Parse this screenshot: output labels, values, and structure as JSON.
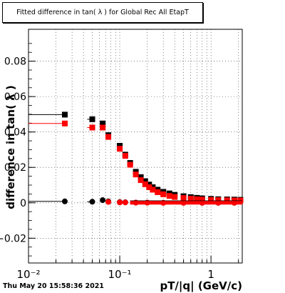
{
  "title": "Fitted difference in tan( λ ) for Global Rec All EtapT",
  "datestamp": "Thu May 20 15:58:36 2021",
  "chart_data": {
    "type": "scatter",
    "title": "Fitted difference in tan( λ ) for Global Rec All EtapT",
    "xlabel": "pT/|q| (GeV/c)",
    "ylabel": "difference in tan( λ )",
    "xscale": "log",
    "xlim": [
      0.01,
      2.2
    ],
    "ylim": [
      -0.034,
      0.098
    ],
    "yticks": [
      -0.02,
      0,
      0.02,
      0.04,
      0.06,
      0.08
    ],
    "ytick_labels": [
      "−0.02",
      "0",
      "0.02",
      "0.04",
      "0.06",
      "0.08"
    ],
    "xticks_major": [
      0.01,
      0.1,
      1
    ],
    "xtick_major_labels": [
      "10⁻²",
      "10⁻¹",
      "1"
    ],
    "grid": true,
    "series": [
      {
        "color": "#000000",
        "marker": "square",
        "x": [
          0.025,
          0.05,
          0.065,
          0.075,
          0.1,
          0.115,
          0.13,
          0.15,
          0.17,
          0.19,
          0.21,
          0.23,
          0.26,
          0.3,
          0.35,
          0.4,
          0.5,
          0.6,
          0.7,
          0.8,
          1.0,
          1.2,
          1.5,
          1.8,
          2.1
        ],
        "y": [
          0.0498,
          0.0472,
          0.0448,
          0.0382,
          0.0322,
          0.0272,
          0.0225,
          0.0175,
          0.0145,
          0.0122,
          0.0103,
          0.0088,
          0.0074,
          0.0062,
          0.0053,
          0.0045,
          0.0037,
          0.0032,
          0.0028,
          0.0025,
          0.0022,
          0.002,
          0.0019,
          0.0018,
          0.0017
        ],
        "xerr_low": [
          0.015,
          0.006,
          0.003
        ]
      },
      {
        "color": "#ff0000",
        "marker": "square",
        "x": [
          0.025,
          0.05,
          0.065,
          0.075,
          0.1,
          0.115,
          0.13,
          0.15,
          0.17,
          0.19,
          0.21,
          0.23,
          0.26,
          0.3,
          0.35,
          0.4,
          0.5,
          0.6,
          0.7,
          0.8,
          1.0,
          1.2,
          1.5,
          1.8,
          2.1
        ],
        "y": [
          0.0448,
          0.0425,
          0.0425,
          0.0372,
          0.0305,
          0.0265,
          0.0215,
          0.016,
          0.0128,
          0.0105,
          0.0088,
          0.0074,
          0.006,
          0.0048,
          0.0039,
          0.0033,
          0.0027,
          0.0023,
          0.002,
          0.0018,
          0.0016,
          0.0015,
          0.0014,
          0.0013,
          0.0013
        ],
        "xerr_low": [
          0.015,
          0.006,
          0.003
        ]
      },
      {
        "color": "#000000",
        "marker": "circle",
        "x": [
          0.025,
          0.05,
          0.065,
          0.075,
          0.1,
          0.115,
          0.15,
          0.2,
          0.3,
          0.5,
          0.8,
          1.2,
          1.8
        ],
        "y": [
          0.0008,
          0.0006,
          0.0015,
          0.0008,
          0.0004,
          0.0003,
          0.0001,
          0.0001,
          0.0,
          0.0,
          0.0,
          0.0,
          0.0
        ],
        "xerr_low": [
          0.015,
          0.006,
          0.003
        ]
      },
      {
        "color": "#ff0000",
        "marker": "circle",
        "x": [
          0.075,
          0.1,
          0.115,
          0.15,
          0.2,
          0.3,
          0.5,
          0.8,
          1.2,
          1.8
        ],
        "y": [
          0.0005,
          0.0002,
          0.0002,
          0.0001,
          0.0001,
          0.0,
          0.0,
          0.0,
          0.0,
          0.0
        ],
        "xerr_low": []
      }
    ]
  }
}
